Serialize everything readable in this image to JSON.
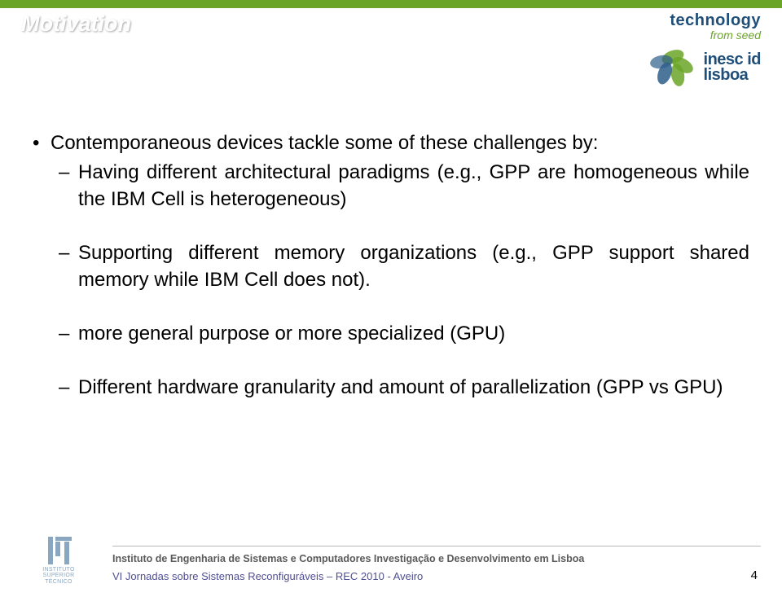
{
  "header": {
    "title": "Motivation",
    "tech_line1": "technology",
    "tech_line2": "from seed",
    "logo_line1": "inesc id",
    "logo_line2": "lisboa"
  },
  "content": {
    "top_item": "Contemporaneous devices tackle some of these challenges by:",
    "sub": [
      {
        "text": "Having different architectural paradigms (e.g., GPP are homogeneous while the IBM Cell is heterogeneous)",
        "gap": false,
        "blue": false
      },
      {
        "text": "Supporting different memory organizations (e.g., GPP support shared memory while IBM Cell does not).",
        "gap": true,
        "blue": false
      },
      {
        "text": "more general purpose or more specialized (GPU)",
        "gap": true,
        "blue": true
      },
      {
        "text": "Different hardware granularity and amount of parallelization (GPP vs GPU)",
        "gap": true,
        "blue": true
      }
    ]
  },
  "footer": {
    "affiliation": "Instituto de Engenharia de Sistemas e Computadores Investigação e Desenvolvimento em Lisboa",
    "conference": "VI Jornadas sobre Sistemas Reconfiguráveis – REC 2010 - Aveiro",
    "page": "4",
    "ist_caption_l1": "INSTITUTO",
    "ist_caption_l2": "SUPERIOR",
    "ist_caption_l3": "TÉCNICO"
  },
  "colors": {
    "green": "#6aa527",
    "darkblue": "#1f4e79",
    "link_blue": "#1f5faa"
  }
}
